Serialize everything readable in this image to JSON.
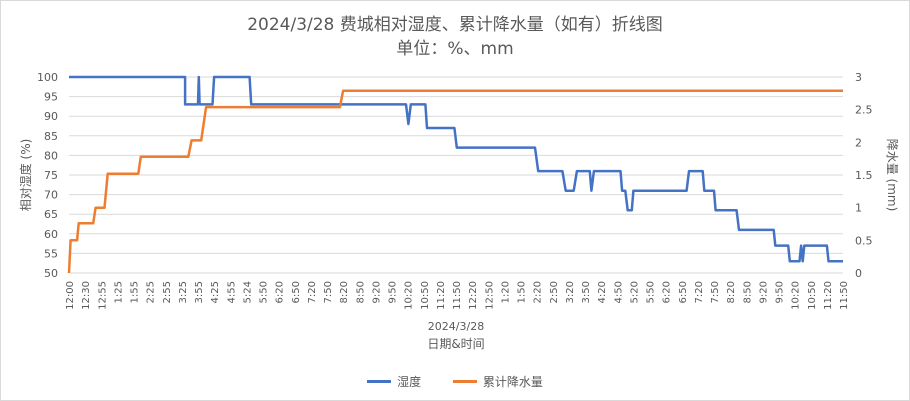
{
  "chart_data": {
    "type": "line",
    "title": "2024/3/28 费城相对湿度、累计降水量（如有）折线图",
    "subtitle": "单位：%、mm",
    "xlabel": "日期&时间",
    "xgroup": "2024/3/28",
    "ylabel": "相对湿度 (%)",
    "y2label": "降水量 (mm)",
    "ylim": [
      50,
      100
    ],
    "y2lim": [
      0,
      3
    ],
    "yticks": [
      "100",
      "95",
      "90",
      "85",
      "80",
      "75",
      "70",
      "65",
      "60",
      "55",
      "50"
    ],
    "y2ticks": [
      "3",
      "2.5",
      "2",
      "1.5",
      "1",
      "0.5",
      "0"
    ],
    "x_tick_labels": [
      "12:00",
      "12:30",
      "12:55",
      "1:25",
      "1:55",
      "2:25",
      "2:55",
      "3:25",
      "3:55",
      "4:25",
      "4:55",
      "5:24",
      "5:50",
      "6:20",
      "6:50",
      "7:20",
      "7:50",
      "8:20",
      "8:50",
      "9:20",
      "9:50",
      "10:20",
      "10:50",
      "11:20",
      "11:50",
      "12:20",
      "12:50",
      "1:20",
      "1:50",
      "2:20",
      "2:50",
      "3:20",
      "3:50",
      "4:20",
      "4:50",
      "5:20",
      "5:50",
      "6:20",
      "6:50",
      "7:20",
      "7:50",
      "8:20",
      "8:50",
      "9:20",
      "9:50",
      "10:20",
      "10:50",
      "11:20",
      "11:50"
    ],
    "grid": true,
    "legend_position": "bottom",
    "series": [
      {
        "name": "湿度",
        "color": "#4472c4",
        "axis": "left",
        "points": [
          [
            0,
            100
          ],
          [
            7.2,
            100
          ],
          [
            7.2,
            93
          ],
          [
            8.0,
            93
          ],
          [
            8.05,
            100
          ],
          [
            8.1,
            93
          ],
          [
            8.9,
            93
          ],
          [
            9.0,
            100
          ],
          [
            11.2,
            100
          ],
          [
            11.3,
            93
          ],
          [
            20.9,
            93
          ],
          [
            21.05,
            88
          ],
          [
            21.2,
            93
          ],
          [
            22.1,
            93
          ],
          [
            22.2,
            87
          ],
          [
            23.9,
            87
          ],
          [
            24.05,
            82
          ],
          [
            28.9,
            82
          ],
          [
            29.1,
            76
          ],
          [
            30.6,
            76
          ],
          [
            30.8,
            71
          ],
          [
            31.3,
            71
          ],
          [
            31.5,
            76
          ],
          [
            32.3,
            76
          ],
          [
            32.4,
            71
          ],
          [
            32.55,
            76
          ],
          [
            34.2,
            76
          ],
          [
            34.3,
            71
          ],
          [
            34.5,
            71
          ],
          [
            34.65,
            66
          ],
          [
            34.9,
            66
          ],
          [
            35.0,
            71
          ],
          [
            38.3,
            71
          ],
          [
            38.45,
            76
          ],
          [
            39.3,
            76
          ],
          [
            39.4,
            71
          ],
          [
            40.0,
            71
          ],
          [
            40.1,
            66
          ],
          [
            41.4,
            66
          ],
          [
            41.55,
            61
          ],
          [
            43.7,
            61
          ],
          [
            43.8,
            57
          ],
          [
            44.6,
            57
          ],
          [
            44.7,
            53
          ],
          [
            45.3,
            53
          ],
          [
            45.4,
            57
          ],
          [
            45.5,
            53
          ],
          [
            45.6,
            57
          ],
          [
            47.0,
            57
          ],
          [
            47.1,
            53
          ],
          [
            48.0,
            53
          ]
        ]
      },
      {
        "name": "累计降水量",
        "color": "#ed7d31",
        "axis": "right",
        "points": [
          [
            0,
            0
          ],
          [
            0.1,
            0.5
          ],
          [
            0.5,
            0.5
          ],
          [
            0.6,
            0.76
          ],
          [
            1.5,
            0.76
          ],
          [
            1.65,
            1.0
          ],
          [
            2.2,
            1.0
          ],
          [
            2.4,
            1.52
          ],
          [
            4.3,
            1.52
          ],
          [
            4.45,
            1.78
          ],
          [
            7.4,
            1.78
          ],
          [
            7.6,
            2.03
          ],
          [
            8.2,
            2.03
          ],
          [
            8.5,
            2.54
          ],
          [
            16.8,
            2.54
          ],
          [
            17.0,
            2.79
          ],
          [
            48.0,
            2.79
          ]
        ]
      }
    ]
  }
}
